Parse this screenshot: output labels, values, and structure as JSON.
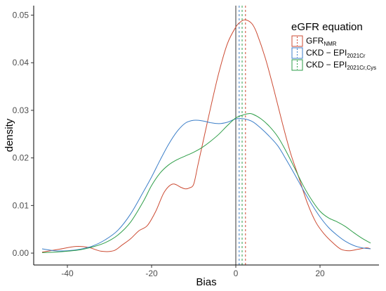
{
  "chart_data": {
    "type": "line",
    "xlabel": "Bias",
    "ylabel": "density",
    "xlim": [
      -48,
      34
    ],
    "ylim": [
      -0.0025,
      0.052
    ],
    "xticks": [
      -40,
      -20,
      0,
      20
    ],
    "xtick_labels": [
      "-40",
      "-20",
      "0",
      "20"
    ],
    "yticks": [
      0,
      0.01,
      0.02,
      0.03,
      0.04,
      0.05
    ],
    "ytick_labels": [
      "0.00",
      "0.01",
      "0.02",
      "0.03",
      "0.04",
      "0.05"
    ],
    "grid": false,
    "legend": {
      "title": "eGFR equation",
      "placement": "top-right",
      "entries": [
        {
          "main": "GFR",
          "sub": "NMR"
        },
        {
          "main": "CKD − EPI",
          "sub": "2021Cr"
        },
        {
          "main": "CKD − EPI",
          "sub": "2021Cr,Cys"
        }
      ]
    },
    "reference_lines": [
      {
        "x": 0,
        "style": "solid",
        "color": "#333333"
      },
      {
        "x": 0.8,
        "style": "dashed",
        "color": "#3B7EC8"
      },
      {
        "x": 1.5,
        "style": "dashed",
        "color": "#2E9E48"
      },
      {
        "x": 2.3,
        "style": "dashed",
        "color": "#CC4B33"
      }
    ],
    "series": [
      {
        "color": "#CC4B33",
        "x": [
          -46,
          -42,
          -38,
          -35,
          -32,
          -29,
          -27,
          -25,
          -23,
          -21,
          -19,
          -17,
          -15,
          -13,
          -12,
          -11,
          -10,
          -9,
          -8,
          -6,
          -4,
          -2,
          0,
          1,
          2,
          3,
          4,
          5,
          7,
          9,
          11,
          13,
          15,
          17,
          19,
          21,
          23,
          25,
          27,
          29,
          31,
          32
        ],
        "y": [
          0.0002,
          0.0008,
          0.0014,
          0.0012,
          0.0004,
          0.0005,
          0.0017,
          0.003,
          0.0047,
          0.0058,
          0.0088,
          0.0128,
          0.0145,
          0.0138,
          0.0135,
          0.0137,
          0.0145,
          0.0185,
          0.0225,
          0.0305,
          0.038,
          0.044,
          0.0475,
          0.0485,
          0.049,
          0.0488,
          0.048,
          0.0462,
          0.041,
          0.0345,
          0.0275,
          0.021,
          0.0158,
          0.0105,
          0.0065,
          0.004,
          0.0022,
          0.0008,
          0.0005,
          0.0008,
          0.0011,
          0.0009
        ]
      },
      {
        "color": "#3B7EC8",
        "x": [
          -46,
          -43,
          -40,
          -37,
          -34,
          -31,
          -28,
          -25,
          -22,
          -20,
          -18,
          -16,
          -14,
          -12,
          -10,
          -8,
          -6,
          -4,
          -2,
          0,
          2,
          4,
          6,
          8,
          10,
          12,
          14,
          16,
          18,
          20,
          22,
          24,
          26,
          28,
          30,
          32
        ],
        "y": [
          0.0009,
          0.0005,
          0.0005,
          0.0008,
          0.0015,
          0.0028,
          0.0048,
          0.0082,
          0.0128,
          0.016,
          0.0195,
          0.0228,
          0.0255,
          0.0273,
          0.0279,
          0.0278,
          0.0274,
          0.0272,
          0.0275,
          0.0282,
          0.0282,
          0.0276,
          0.0262,
          0.0245,
          0.0225,
          0.0196,
          0.0165,
          0.0133,
          0.0103,
          0.0076,
          0.0054,
          0.0038,
          0.0025,
          0.0016,
          0.0011,
          0.0009
        ]
      },
      {
        "color": "#2E9E48",
        "x": [
          -46,
          -43,
          -40,
          -37,
          -34,
          -31,
          -28,
          -25,
          -22,
          -20,
          -18,
          -16,
          -14,
          -12,
          -10,
          -8,
          -6,
          -4,
          -2,
          0,
          2,
          3,
          4,
          6,
          8,
          10,
          12,
          14,
          16,
          18,
          20,
          22,
          24,
          26,
          28,
          30,
          32
        ],
        "y": [
          0.0001,
          0.0002,
          0.0004,
          0.0007,
          0.0013,
          0.0022,
          0.0038,
          0.0065,
          0.0108,
          0.0142,
          0.0168,
          0.0185,
          0.0196,
          0.0204,
          0.0212,
          0.0222,
          0.0235,
          0.025,
          0.0268,
          0.0284,
          0.0291,
          0.0293,
          0.0292,
          0.0282,
          0.0266,
          0.0244,
          0.0213,
          0.0178,
          0.0142,
          0.0112,
          0.0088,
          0.0074,
          0.0066,
          0.0056,
          0.0043,
          0.0031,
          0.0021
        ]
      }
    ]
  }
}
